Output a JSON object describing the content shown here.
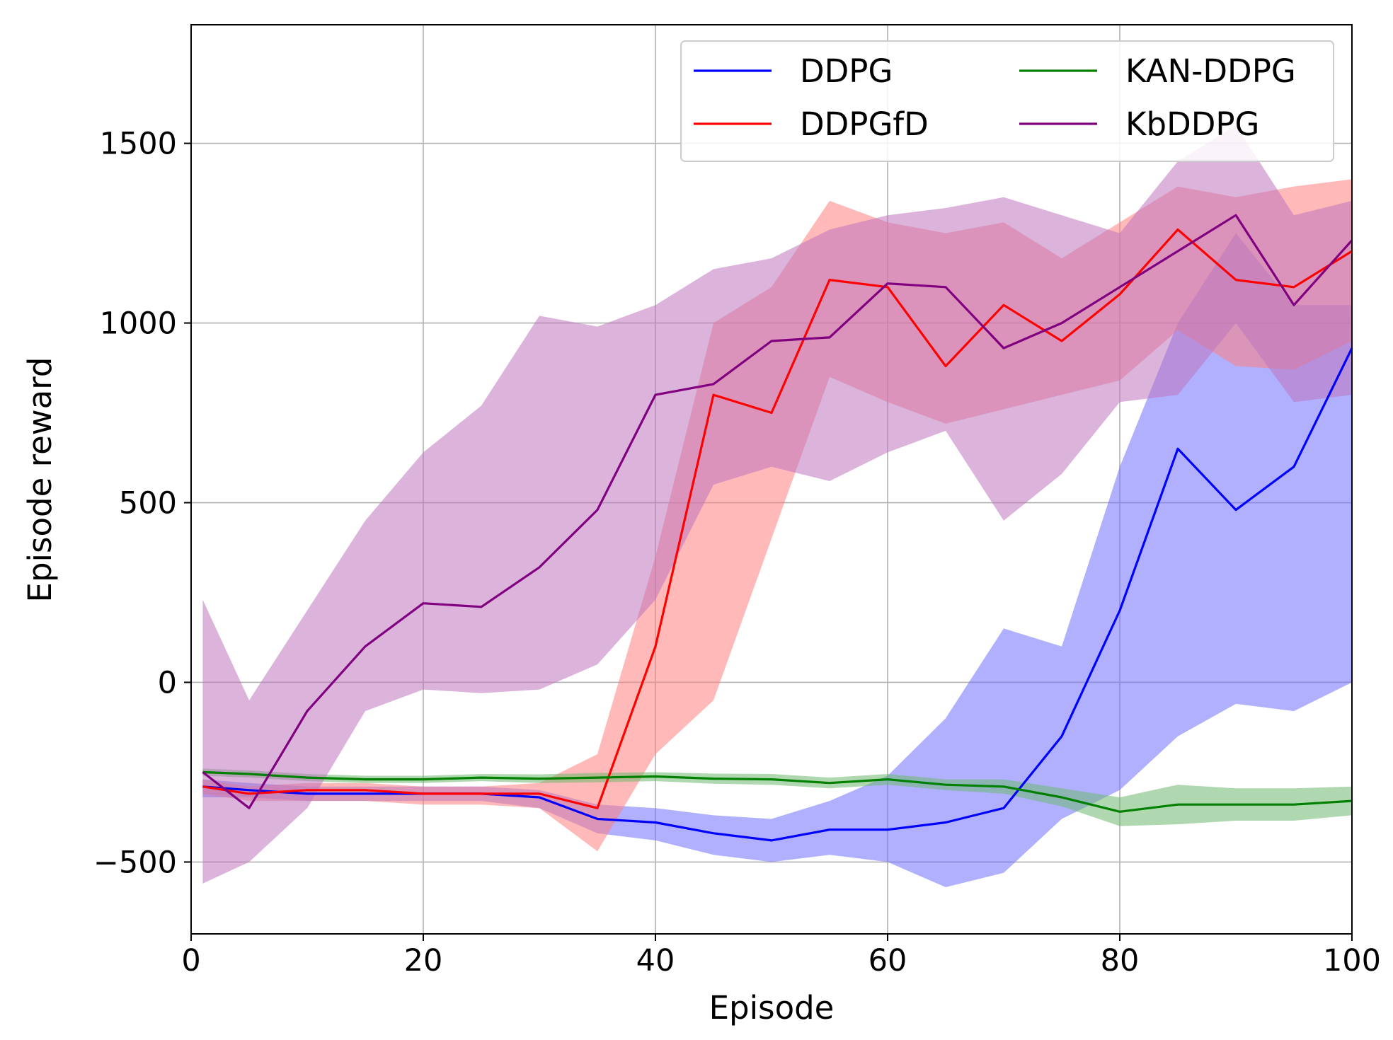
{
  "chart_data": {
    "type": "line",
    "title": "",
    "xlabel": "Episode",
    "ylabel": "Episode reward",
    "xlim": [
      0,
      100
    ],
    "ylim": [
      -700,
      1830
    ],
    "xticks": [
      0,
      20,
      40,
      60,
      80,
      100
    ],
    "yticks": [
      -500,
      0,
      500,
      1000,
      1500
    ],
    "ytick_labels": [
      "−500",
      "0",
      "500",
      "1000",
      "1500"
    ],
    "grid": true,
    "legend": {
      "placement": "top-right",
      "columns": 2
    },
    "x": [
      1,
      5,
      10,
      15,
      20,
      25,
      30,
      35,
      40,
      45,
      50,
      55,
      60,
      65,
      70,
      75,
      80,
      85,
      90,
      95,
      100
    ],
    "series": [
      {
        "name": "DDPG",
        "color": "#0000ff",
        "fill": "#7070ff",
        "mean": [
          -290,
          -300,
          -310,
          -310,
          -310,
          -310,
          -320,
          -380,
          -390,
          -420,
          -440,
          -410,
          -410,
          -390,
          -350,
          -150,
          200,
          650,
          480,
          600,
          930
        ],
        "lower": [
          -320,
          -320,
          -330,
          -330,
          -330,
          -330,
          -350,
          -420,
          -440,
          -480,
          -500,
          -480,
          -500,
          -570,
          -530,
          -380,
          -300,
          -150,
          -60,
          -80,
          0
        ],
        "upper": [
          -270,
          -280,
          -290,
          -290,
          -290,
          -290,
          -300,
          -340,
          -350,
          -370,
          -380,
          -330,
          -260,
          -100,
          150,
          100,
          600,
          1000,
          1250,
          1050,
          1050
        ]
      },
      {
        "name": "DDPGfD",
        "color": "#ff0000",
        "fill": "#ff8080",
        "mean": [
          -290,
          -310,
          -300,
          -300,
          -310,
          -310,
          -310,
          -350,
          100,
          800,
          750,
          1120,
          1100,
          880,
          1050,
          950,
          1080,
          1260,
          1120,
          1100,
          1200
        ],
        "lower": [
          -310,
          -330,
          -330,
          -330,
          -340,
          -340,
          -350,
          -470,
          -200,
          -50,
          400,
          850,
          780,
          720,
          760,
          800,
          840,
          980,
          880,
          870,
          950
        ],
        "upper": [
          -270,
          -290,
          -280,
          -280,
          -290,
          -290,
          -280,
          -200,
          350,
          1000,
          1100,
          1340,
          1280,
          1250,
          1280,
          1180,
          1280,
          1380,
          1350,
          1380,
          1400
        ]
      },
      {
        "name": "KAN-DDPG",
        "color": "#008000",
        "fill": "#6fb86f",
        "mean": [
          -250,
          -255,
          -265,
          -270,
          -270,
          -265,
          -268,
          -265,
          -262,
          -268,
          -270,
          -280,
          -270,
          -285,
          -290,
          -320,
          -360,
          -340,
          -340,
          -340,
          -330
        ],
        "lower": [
          -260,
          -265,
          -275,
          -280,
          -280,
          -275,
          -280,
          -278,
          -275,
          -282,
          -285,
          -295,
          -285,
          -300,
          -310,
          -345,
          -400,
          -395,
          -385,
          -385,
          -370
        ],
        "upper": [
          -240,
          -245,
          -255,
          -260,
          -260,
          -255,
          -256,
          -252,
          -250,
          -254,
          -255,
          -265,
          -255,
          -270,
          -270,
          -295,
          -320,
          -285,
          -295,
          -295,
          -290
        ]
      },
      {
        "name": "KbDDPG",
        "color": "#800080",
        "fill": "#bd74bd",
        "mean": [
          -250,
          -350,
          -80,
          100,
          220,
          210,
          320,
          480,
          800,
          830,
          950,
          960,
          1110,
          1100,
          930,
          1000,
          1100,
          1200,
          1300,
          1050,
          1230
        ],
        "lower": [
          -560,
          -500,
          -350,
          -80,
          -20,
          -30,
          -20,
          50,
          230,
          550,
          600,
          560,
          640,
          700,
          450,
          580,
          780,
          800,
          1000,
          780,
          800
        ],
        "upper": [
          230,
          -50,
          200,
          450,
          640,
          770,
          1020,
          990,
          1050,
          1150,
          1180,
          1260,
          1300,
          1320,
          1350,
          1300,
          1250,
          1450,
          1550,
          1300,
          1340
        ]
      }
    ]
  }
}
